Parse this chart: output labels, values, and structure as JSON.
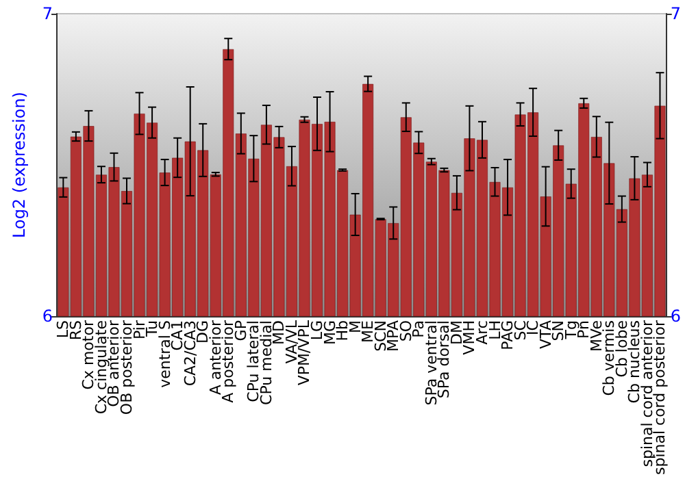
{
  "chart_data": {
    "type": "bar",
    "ylabel": "Log2 (expression)",
    "categories": [
      "LS",
      "RS",
      "Cx motor",
      "Cx cingulate",
      "OB anterior",
      "OB posterior",
      "Pir",
      "Tu",
      "ventral S",
      "CA1",
      "CA2/CA3",
      "DG",
      "A anterior",
      "A posterior",
      "GP",
      "CPu lateral",
      "CPu medial",
      "MD",
      "VA/VL",
      "VPM/VPL",
      "LG",
      "MG",
      "Hb",
      "M",
      "ME",
      "SCN",
      "MPA",
      "SO",
      "Pa",
      "SPa ventral",
      "SPa dorsal",
      "DM",
      "VMH",
      "Arc",
      "LH",
      "PAG",
      "SC",
      "IC",
      "VTA",
      "SN",
      "Tg",
      "Pn",
      "MVe",
      "Cb vermis",
      "Cb lobe",
      "Cb nucleus",
      "spinal cord anterior",
      "spinal cord posterior"
    ],
    "series": [
      {
        "color": "#b23232",
        "values": [
          6.426,
          6.594,
          6.629,
          6.468,
          6.493,
          6.414,
          6.67,
          6.64,
          6.475,
          6.524,
          6.578,
          6.549,
          6.469,
          6.883,
          6.604,
          6.521,
          6.633,
          6.592,
          6.496,
          6.65,
          6.636,
          6.643,
          6.483,
          6.336,
          6.768,
          6.321,
          6.308,
          6.658,
          6.574,
          6.511,
          6.483,
          6.408,
          6.588,
          6.583,
          6.444,
          6.426,
          6.667,
          6.674,
          6.396,
          6.565,
          6.438,
          6.704,
          6.593,
          6.506,
          6.354,
          6.456,
          6.468,
          6.696
        ],
        "errors": [
          0.032,
          0.015,
          0.05,
          0.027,
          0.046,
          0.042,
          0.069,
          0.051,
          0.043,
          0.065,
          0.18,
          0.087,
          0.006,
          0.035,
          0.067,
          0.076,
          0.064,
          0.035,
          0.065,
          0.009,
          0.088,
          0.099,
          0.003,
          0.069,
          0.025,
          0.002,
          0.053,
          0.047,
          0.036,
          0.01,
          0.006,
          0.056,
          0.107,
          0.06,
          0.047,
          0.092,
          0.038,
          0.079,
          0.098,
          0.049,
          0.048,
          0.016,
          0.067,
          0.135,
          0.043,
          0.071,
          0.04,
          0.109
        ]
      }
    ],
    "ylim": [
      6,
      7
    ],
    "yticks": [
      6,
      7
    ],
    "y2lim": [
      6,
      7
    ],
    "y2ticks": [
      6,
      7
    ]
  }
}
